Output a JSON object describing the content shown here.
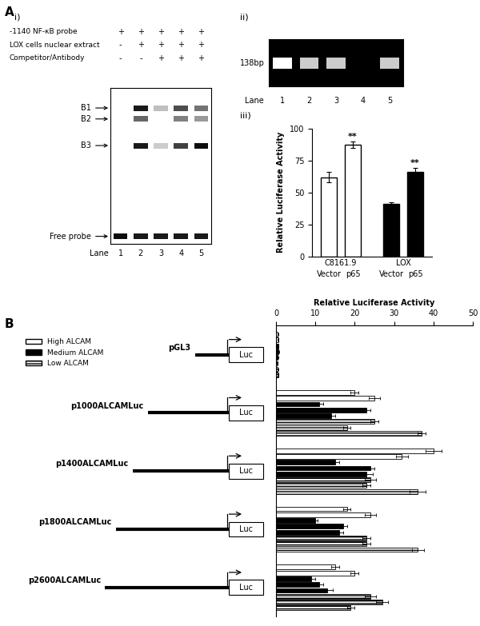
{
  "panel_labels": {
    "A": "A",
    "B": "B",
    "i": "i)",
    "ii": "ii)",
    "iii": "iii)"
  },
  "emsa_gel": {
    "rows": [
      {
        "label": "-1140 NF-κB probe",
        "signs": [
          "+",
          "+",
          "+",
          "+",
          "+"
        ]
      },
      {
        "label": "LOX cells nuclear extract",
        "signs": [
          "-",
          "+",
          "+",
          "+",
          "+"
        ]
      },
      {
        "label": "Competitor/Antibody",
        "signs": [
          "-",
          "-",
          "+",
          "+",
          "+"
        ]
      }
    ],
    "lane_label": "Lane",
    "lanes": [
      "1",
      "2",
      "3",
      "4",
      "5"
    ],
    "bands": [
      {
        "name": "B1",
        "intensity": [
          0,
          0.9,
          0.25,
          0.7,
          0.55
        ]
      },
      {
        "name": "B2",
        "intensity": [
          0,
          0.6,
          0,
          0.5,
          0.4
        ]
      },
      {
        "name": "B3",
        "intensity": [
          0,
          0.9,
          0.2,
          0.75,
          0.95
        ]
      },
      {
        "name": "Free probe",
        "intensity": [
          0.95,
          0.9,
          0.9,
          0.9,
          0.9
        ]
      }
    ]
  },
  "pcr_gel": {
    "size_label": "138bp",
    "lane_label": "Lane",
    "lanes": [
      "1",
      "2",
      "3",
      "4",
      "5"
    ],
    "intensity": [
      1,
      0.8,
      0.8,
      0,
      0.8
    ]
  },
  "chart_data": [
    {
      "type": "bar",
      "ylabel": "Relative Luciferase Activity",
      "ylim": [
        0,
        100
      ],
      "yticks": [
        0,
        25,
        50,
        75,
        100
      ],
      "series": [
        {
          "name": "C8161.9",
          "color": "#ffffff",
          "categories": [
            "Vector",
            "p65"
          ],
          "values": [
            62,
            87
          ],
          "errors": [
            4,
            2.5
          ],
          "annotations": [
            null,
            "**"
          ]
        },
        {
          "name": "LOX",
          "color": "#000000",
          "categories": [
            "Vector",
            "p65"
          ],
          "values": [
            41,
            66
          ],
          "errors": [
            1.5,
            3
          ],
          "annotations": [
            null,
            "**"
          ]
        }
      ]
    },
    {
      "type": "bar",
      "orientation": "horizontal",
      "xlabel": "Relative Luciferase Activity",
      "xlim": [
        0,
        50
      ],
      "xticks": [
        0,
        10,
        20,
        30,
        40,
        50
      ],
      "tick_labels": "x",
      "legend": "upper left",
      "box_label": "Luc",
      "categories": [
        "pGL3",
        "p1000ALCAMLuc",
        "p1400ALCAMLuc",
        "p1800ALCAMLuc",
        "p2600ALCAMLuc"
      ],
      "series": [
        {
          "name": "High ALCAM",
          "color": "#ffffff",
          "values": [
            [
              0.5,
              0.6
            ],
            [
              20,
              25
            ],
            [
              40,
              32
            ],
            [
              18,
              24
            ],
            [
              15,
              20
            ]
          ],
          "errors": [
            [
              0.1,
              0.1
            ],
            [
              1,
              1.5
            ],
            [
              2,
              1.5
            ],
            [
              1,
              1.5
            ],
            [
              1,
              1
            ]
          ]
        },
        {
          "name": "Medium ALCAM",
          "color": "#000000",
          "values": [
            [
              0.6,
              0.7,
              0.5
            ],
            [
              11,
              23,
              14
            ],
            [
              15,
              24,
              23
            ],
            [
              10,
              17,
              16
            ],
            [
              9,
              11,
              13
            ]
          ],
          "errors": [
            [
              0.1,
              0.1,
              0.1
            ],
            [
              1,
              1,
              1
            ],
            [
              1,
              1,
              1.5
            ],
            [
              0.5,
              1,
              1
            ],
            [
              1,
              1,
              1.5
            ]
          ]
        },
        {
          "name": "Low ALCAM",
          "color": "#ffffff",
          "values": [
            [
              0.4,
              0.5,
              0.6
            ],
            [
              25,
              18,
              37
            ],
            [
              24,
              23,
              36
            ],
            [
              23,
              23,
              36
            ],
            [
              24,
              27,
              19
            ]
          ],
          "errors": [
            [
              0.1,
              0.1,
              0.1
            ],
            [
              1,
              1,
              1
            ],
            [
              1.5,
              1,
              2
            ],
            [
              1,
              1,
              1.5
            ],
            [
              1.5,
              1.5,
              1
            ]
          ]
        }
      ]
    }
  ]
}
